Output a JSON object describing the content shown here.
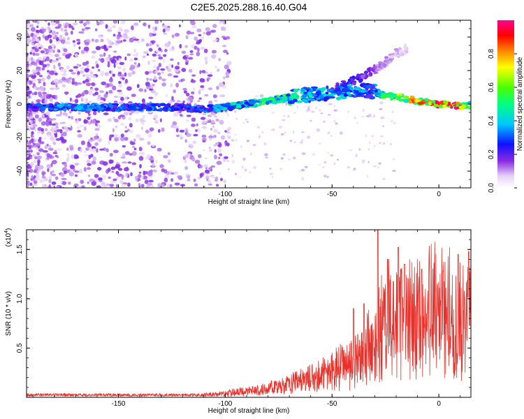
{
  "title": "C2E5.2025.288.16.40.G04",
  "chart_data": [
    {
      "type": "heatmap",
      "xlabel": "Height of straight line (km)",
      "ylabel": "Frequency (Hz)",
      "xlim": [
        -193,
        15
      ],
      "ylim": [
        -50,
        50
      ],
      "xticks": [
        -150,
        -100,
        -50,
        0
      ],
      "yticks": [
        -40,
        -20,
        0,
        20,
        40
      ],
      "colorbar": {
        "label": "Normalized spectral amplitude",
        "range": [
          0,
          1
        ],
        "ticks": [
          0.0,
          0.2,
          0.4,
          0.6,
          0.8
        ]
      },
      "features": {
        "main_band": [
          {
            "x": -193,
            "y": -2,
            "amp": 0.25
          },
          {
            "x": -180,
            "y": -2,
            "amp": 0.35
          },
          {
            "x": -165,
            "y": -2,
            "amp": 0.35
          },
          {
            "x": -150,
            "y": -2,
            "amp": 0.32
          },
          {
            "x": -135,
            "y": -2,
            "amp": 0.33
          },
          {
            "x": -120,
            "y": -2,
            "amp": 0.28
          },
          {
            "x": -110,
            "y": -3,
            "amp": 0.3
          },
          {
            "x": -100,
            "y": -2,
            "amp": 0.38
          },
          {
            "x": -90,
            "y": 0,
            "amp": 0.45
          },
          {
            "x": -80,
            "y": 2,
            "amp": 0.55
          },
          {
            "x": -70,
            "y": 4,
            "amp": 0.5
          },
          {
            "x": -60,
            "y": 6,
            "amp": 0.42
          },
          {
            "x": -50,
            "y": 6,
            "amp": 0.4
          },
          {
            "x": -40,
            "y": 8,
            "amp": 0.38
          },
          {
            "x": -32,
            "y": 8,
            "amp": 0.3
          },
          {
            "x": -27,
            "y": 6,
            "amp": 0.45
          },
          {
            "x": -20,
            "y": 4,
            "amp": 0.7
          },
          {
            "x": -10,
            "y": 2,
            "amp": 0.8
          },
          {
            "x": 0,
            "y": 0,
            "amp": 0.88
          },
          {
            "x": 8,
            "y": -1,
            "amp": 0.95
          },
          {
            "x": 15,
            "y": -1,
            "amp": 0.6
          }
        ],
        "rising_branch": [
          {
            "x": -50,
            "y": 8,
            "amp": 0.2
          },
          {
            "x": -40,
            "y": 14,
            "amp": 0.25
          },
          {
            "x": -34,
            "y": 18,
            "amp": 0.2
          },
          {
            "x": -28,
            "y": 22,
            "amp": 0.12
          },
          {
            "x": -20,
            "y": 30,
            "amp": 0.1
          },
          {
            "x": -15,
            "y": 33,
            "amp": 0.08
          }
        ]
      }
    },
    {
      "type": "line",
      "xlabel": "Height of straight line (km)",
      "ylabel": "SNR (10 * v/v)",
      "y_multiplier": "(x10",
      "y_multiplier_exp": "4",
      "y_multiplier_close": ")",
      "xlim": [
        -193,
        15
      ],
      "ylim": [
        0,
        1.7
      ],
      "xticks": [
        -150,
        -100,
        -50,
        0
      ],
      "yticks": [
        0.5,
        1.0,
        1.5
      ],
      "color": "#e8312a",
      "envelope": [
        {
          "x": -193,
          "y": 0.02
        },
        {
          "x": -120,
          "y": 0.03
        },
        {
          "x": -105,
          "y": 0.04
        },
        {
          "x": -95,
          "y": 0.07
        },
        {
          "x": -85,
          "y": 0.1
        },
        {
          "x": -75,
          "y": 0.15
        },
        {
          "x": -65,
          "y": 0.22
        },
        {
          "x": -55,
          "y": 0.3
        },
        {
          "x": -45,
          "y": 0.42
        },
        {
          "x": -38,
          "y": 0.55
        },
        {
          "x": -30,
          "y": 0.85
        },
        {
          "x": -25,
          "y": 1.05
        },
        {
          "x": -15,
          "y": 1.05
        },
        {
          "x": -5,
          "y": 1.15
        },
        {
          "x": 5,
          "y": 1.15
        },
        {
          "x": 15,
          "y": 1.1
        }
      ],
      "spikes": [
        {
          "x": -28.5,
          "y": 1.7
        },
        {
          "x": -19,
          "y": 1.52
        },
        {
          "x": 14,
          "y": 1.48
        },
        {
          "x": 9,
          "y": 1.45
        },
        {
          "x": -16,
          "y": 1.35
        },
        {
          "x": -24,
          "y": 1.4
        },
        {
          "x": -35,
          "y": 0.95
        },
        {
          "x": -40,
          "y": 0.9
        },
        {
          "x": -8,
          "y": 1.3
        },
        {
          "x": 2,
          "y": 1.28
        }
      ]
    }
  ]
}
